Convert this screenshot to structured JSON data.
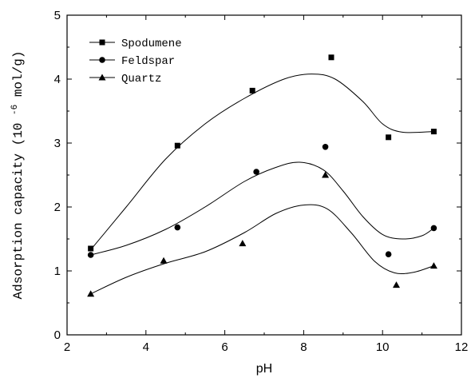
{
  "chart_data": {
    "type": "scatter",
    "xlabel": "pH",
    "ylabel_prefix": "Adsorption capacity (10",
    "ylabel_exponent": "-6",
    "ylabel_suffix": " mol/g)",
    "xlim": [
      2,
      12
    ],
    "ylim": [
      0,
      5
    ],
    "xticks": [
      "2",
      "4",
      "6",
      "8",
      "10",
      "12"
    ],
    "yticks": [
      "0",
      "1",
      "2",
      "3",
      "4",
      "5"
    ],
    "grid": false,
    "legend_position": "top-left",
    "series": [
      {
        "name": "Spodumene",
        "marker": "square",
        "points": [
          [
            2.6,
            1.35
          ],
          [
            4.8,
            2.96
          ],
          [
            6.7,
            3.82
          ],
          [
            8.7,
            4.34
          ],
          [
            10.15,
            3.09
          ],
          [
            11.3,
            3.18
          ]
        ],
        "fit": [
          [
            2.6,
            1.33
          ],
          [
            3.5,
            2.0
          ],
          [
            4.5,
            2.75
          ],
          [
            5.5,
            3.3
          ],
          [
            6.5,
            3.7
          ],
          [
            7.5,
            4.0
          ],
          [
            8.2,
            4.08
          ],
          [
            8.8,
            4.0
          ],
          [
            9.5,
            3.65
          ],
          [
            10.0,
            3.3
          ],
          [
            10.5,
            3.17
          ],
          [
            11.3,
            3.18
          ]
        ]
      },
      {
        "name": "Feldspar",
        "marker": "circle",
        "points": [
          [
            2.6,
            1.25
          ],
          [
            4.8,
            1.68
          ],
          [
            6.8,
            2.55
          ],
          [
            8.55,
            2.94
          ],
          [
            10.15,
            1.26
          ],
          [
            11.3,
            1.67
          ]
        ],
        "fit": [
          [
            2.6,
            1.25
          ],
          [
            3.5,
            1.4
          ],
          [
            4.5,
            1.65
          ],
          [
            5.5,
            2.0
          ],
          [
            6.5,
            2.4
          ],
          [
            7.3,
            2.62
          ],
          [
            7.9,
            2.7
          ],
          [
            8.5,
            2.58
          ],
          [
            9.0,
            2.25
          ],
          [
            9.5,
            1.85
          ],
          [
            10.0,
            1.57
          ],
          [
            10.5,
            1.5
          ],
          [
            11.0,
            1.55
          ],
          [
            11.3,
            1.67
          ]
        ]
      },
      {
        "name": "Quartz",
        "marker": "triangle",
        "points": [
          [
            2.6,
            0.64
          ],
          [
            4.45,
            1.16
          ],
          [
            6.45,
            1.43
          ],
          [
            8.55,
            2.5
          ],
          [
            10.35,
            0.78
          ],
          [
            11.3,
            1.08
          ]
        ],
        "fit": [
          [
            2.6,
            0.64
          ],
          [
            3.5,
            0.9
          ],
          [
            4.5,
            1.12
          ],
          [
            5.5,
            1.3
          ],
          [
            6.5,
            1.6
          ],
          [
            7.3,
            1.9
          ],
          [
            8.0,
            2.03
          ],
          [
            8.6,
            1.97
          ],
          [
            9.2,
            1.6
          ],
          [
            9.8,
            1.15
          ],
          [
            10.3,
            0.97
          ],
          [
            10.8,
            0.98
          ],
          [
            11.3,
            1.08
          ]
        ]
      }
    ]
  }
}
